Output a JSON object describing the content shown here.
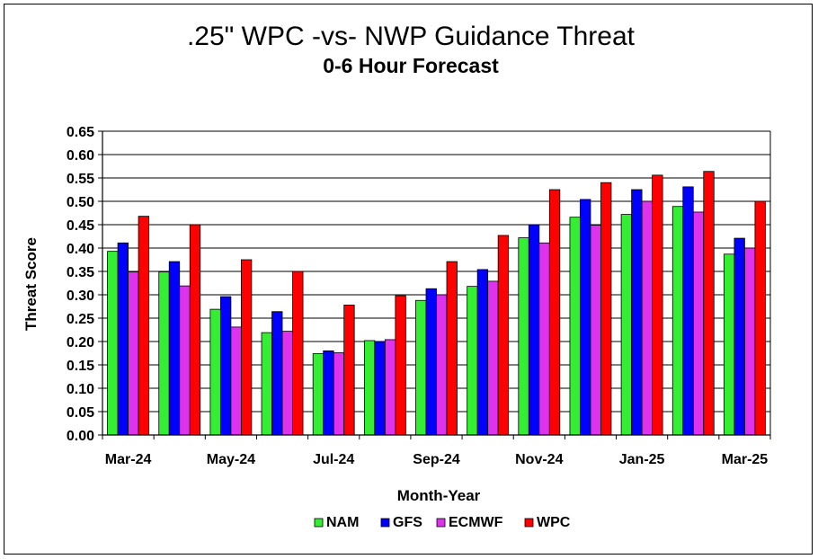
{
  "chart_data": {
    "type": "bar",
    "title": ".25\" WPC -vs- NWP Guidance Threat",
    "subtitle": "0-6 Hour Forecast",
    "xlabel": "Month-Year",
    "ylabel": "Threat Score",
    "ylim": [
      0,
      0.65
    ],
    "ytick_step": 0.05,
    "yticks": [
      "0.00",
      "0.05",
      "0.10",
      "0.15",
      "0.20",
      "0.25",
      "0.30",
      "0.35",
      "0.40",
      "0.45",
      "0.50",
      "0.55",
      "0.60",
      "0.65"
    ],
    "grid": true,
    "legend_position": "bottom",
    "categories": [
      "Mar-24",
      "Apr-24",
      "May-24",
      "Jun-24",
      "Jul-24",
      "Aug-24",
      "Sep-24",
      "Oct-24",
      "Nov-24",
      "Dec-24",
      "Jan-25",
      "Feb-25",
      "Mar-25"
    ],
    "xtick_labels": [
      "Mar-24",
      "",
      "May-24",
      "",
      "Jul-24",
      "",
      "Sep-24",
      "",
      "Nov-24",
      "",
      "Jan-25",
      "",
      "Mar-25"
    ],
    "series": [
      {
        "name": "NAM",
        "color": "#33ee33",
        "values": [
          0.393,
          0.349,
          0.269,
          0.219,
          0.174,
          0.202,
          0.288,
          0.318,
          0.422,
          0.466,
          0.472,
          0.489,
          0.387
        ]
      },
      {
        "name": "GFS",
        "color": "#0000ff",
        "values": [
          0.411,
          0.371,
          0.296,
          0.264,
          0.18,
          0.2,
          0.313,
          0.354,
          0.45,
          0.504,
          0.525,
          0.531,
          0.421
        ]
      },
      {
        "name": "ECMWF",
        "color": "#dd33ee",
        "values": [
          0.349,
          0.319,
          0.231,
          0.222,
          0.176,
          0.204,
          0.3,
          0.329,
          0.411,
          0.449,
          0.5,
          0.477,
          0.4
        ]
      },
      {
        "name": "WPC",
        "color": "#ff0000",
        "values": [
          0.468,
          0.45,
          0.375,
          0.35,
          0.278,
          0.298,
          0.371,
          0.427,
          0.525,
          0.54,
          0.556,
          0.564,
          0.5
        ]
      }
    ]
  }
}
